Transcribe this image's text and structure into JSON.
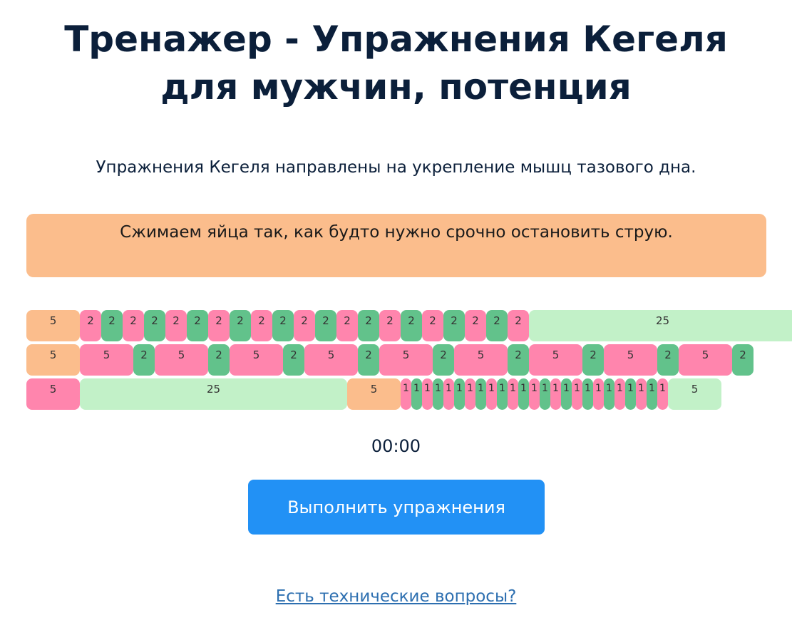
{
  "header": {
    "title_line1": "Тренажер - Упражнения Кегеля",
    "title_line2": "для мужчин, потенция",
    "subtitle": "Упражнения Кегеля направлены на укрепление мышц тазового дна."
  },
  "instruction": {
    "text": "Сжимаем яйца так, как будто нужно срочно остановить струю."
  },
  "colors": {
    "squeeze": "#ff85ad",
    "relax": "#62c28b",
    "rest": "#c2f1c8",
    "prepare": "#fbbd8c"
  },
  "timeline": [
    [
      {
        "v": 5,
        "t": "prepare"
      },
      {
        "v": 2,
        "t": "squeeze"
      },
      {
        "v": 2,
        "t": "relax"
      },
      {
        "v": 2,
        "t": "squeeze"
      },
      {
        "v": 2,
        "t": "relax"
      },
      {
        "v": 2,
        "t": "squeeze"
      },
      {
        "v": 2,
        "t": "relax"
      },
      {
        "v": 2,
        "t": "squeeze"
      },
      {
        "v": 2,
        "t": "relax"
      },
      {
        "v": 2,
        "t": "squeeze"
      },
      {
        "v": 2,
        "t": "relax"
      },
      {
        "v": 2,
        "t": "squeeze"
      },
      {
        "v": 2,
        "t": "relax"
      },
      {
        "v": 2,
        "t": "squeeze"
      },
      {
        "v": 2,
        "t": "relax"
      },
      {
        "v": 2,
        "t": "squeeze"
      },
      {
        "v": 2,
        "t": "relax"
      },
      {
        "v": 2,
        "t": "squeeze"
      },
      {
        "v": 2,
        "t": "relax"
      },
      {
        "v": 2,
        "t": "squeeze"
      },
      {
        "v": 2,
        "t": "relax"
      },
      {
        "v": 2,
        "t": "squeeze"
      },
      {
        "v": 25,
        "t": "rest"
      }
    ],
    [
      {
        "v": 5,
        "t": "prepare"
      },
      {
        "v": 5,
        "t": "squeeze"
      },
      {
        "v": 2,
        "t": "relax"
      },
      {
        "v": 5,
        "t": "squeeze"
      },
      {
        "v": 2,
        "t": "relax"
      },
      {
        "v": 5,
        "t": "squeeze"
      },
      {
        "v": 2,
        "t": "relax"
      },
      {
        "v": 5,
        "t": "squeeze"
      },
      {
        "v": 2,
        "t": "relax"
      },
      {
        "v": 5,
        "t": "squeeze"
      },
      {
        "v": 2,
        "t": "relax"
      },
      {
        "v": 5,
        "t": "squeeze"
      },
      {
        "v": 2,
        "t": "relax"
      },
      {
        "v": 5,
        "t": "squeeze"
      },
      {
        "v": 2,
        "t": "relax"
      },
      {
        "v": 5,
        "t": "squeeze"
      },
      {
        "v": 2,
        "t": "relax"
      },
      {
        "v": 5,
        "t": "squeeze"
      },
      {
        "v": 2,
        "t": "relax"
      }
    ],
    [
      {
        "v": 5,
        "t": "squeeze"
      },
      {
        "v": 25,
        "t": "rest"
      },
      {
        "v": 5,
        "t": "prepare"
      },
      {
        "v": 1,
        "t": "squeeze"
      },
      {
        "v": 1,
        "t": "relax"
      },
      {
        "v": 1,
        "t": "squeeze"
      },
      {
        "v": 1,
        "t": "relax"
      },
      {
        "v": 1,
        "t": "squeeze"
      },
      {
        "v": 1,
        "t": "relax"
      },
      {
        "v": 1,
        "t": "squeeze"
      },
      {
        "v": 1,
        "t": "relax"
      },
      {
        "v": 1,
        "t": "squeeze"
      },
      {
        "v": 1,
        "t": "relax"
      },
      {
        "v": 1,
        "t": "squeeze"
      },
      {
        "v": 1,
        "t": "relax"
      },
      {
        "v": 1,
        "t": "squeeze"
      },
      {
        "v": 1,
        "t": "relax"
      },
      {
        "v": 1,
        "t": "squeeze"
      },
      {
        "v": 1,
        "t": "relax"
      },
      {
        "v": 1,
        "t": "squeeze"
      },
      {
        "v": 1,
        "t": "relax"
      },
      {
        "v": 1,
        "t": "squeeze"
      },
      {
        "v": 1,
        "t": "relax"
      },
      {
        "v": 1,
        "t": "squeeze"
      },
      {
        "v": 1,
        "t": "relax"
      },
      {
        "v": 1,
        "t": "squeeze"
      },
      {
        "v": 1,
        "t": "relax"
      },
      {
        "v": 1,
        "t": "squeeze"
      },
      {
        "v": 5,
        "t": "rest"
      }
    ]
  ],
  "timer": {
    "value": "00:00"
  },
  "actions": {
    "start_label": "Выполнить упражнения",
    "help_link": "Есть технические вопросы?"
  }
}
